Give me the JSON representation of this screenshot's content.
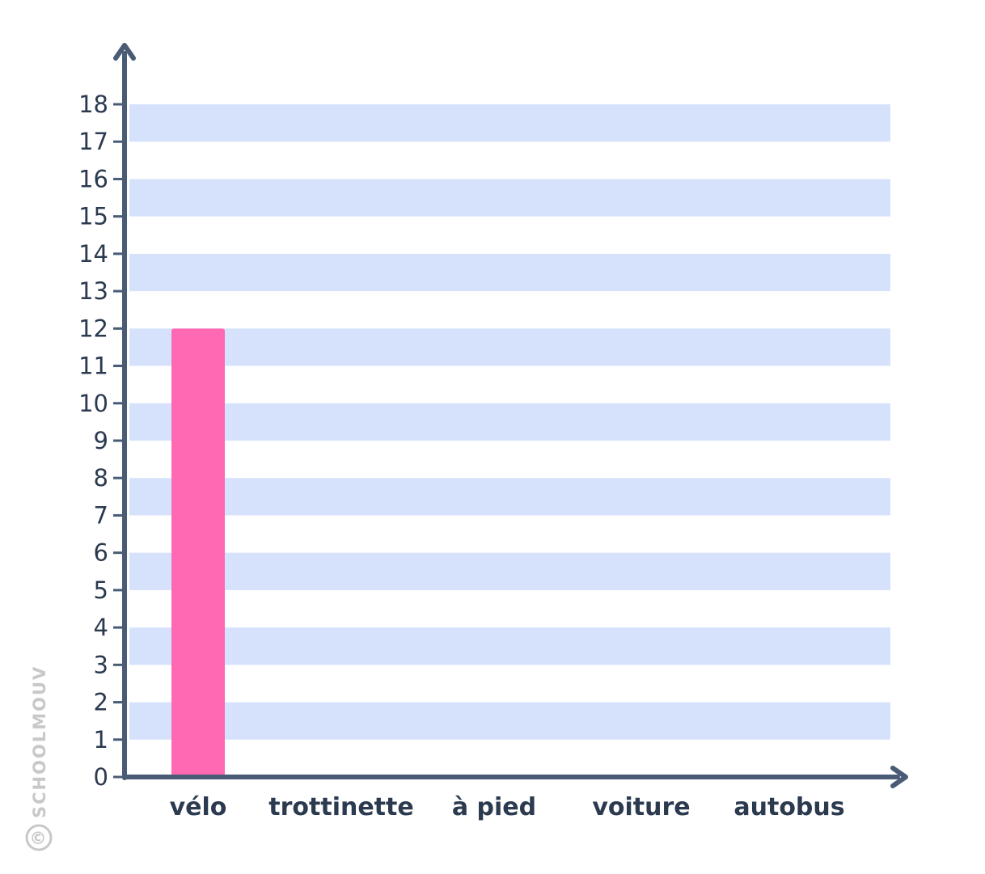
{
  "chart_data": {
    "type": "bar",
    "categories": [
      "vélo",
      "trottinette",
      "à pied",
      "voiture",
      "autobus"
    ],
    "values": [
      12,
      0,
      0,
      0,
      0
    ],
    "yticks": [
      "0",
      "1",
      "2",
      "3",
      "4",
      "5",
      "6",
      "7",
      "8",
      "9",
      "10",
      "11",
      "12",
      "13",
      "14",
      "15",
      "16",
      "17",
      "18"
    ],
    "ylim": [
      0,
      18
    ],
    "title": "",
    "xlabel": "",
    "ylabel": "",
    "grid": "alternating horizontal bands",
    "colors": {
      "bar": "#ff69b4",
      "band": "#d6e2fc",
      "axis": "#4a5c75",
      "text": "#2b3a4f"
    }
  },
  "watermark": {
    "text": "SCHOOLMOUV",
    "symbol": "©",
    "color": "#c8c8c8"
  }
}
